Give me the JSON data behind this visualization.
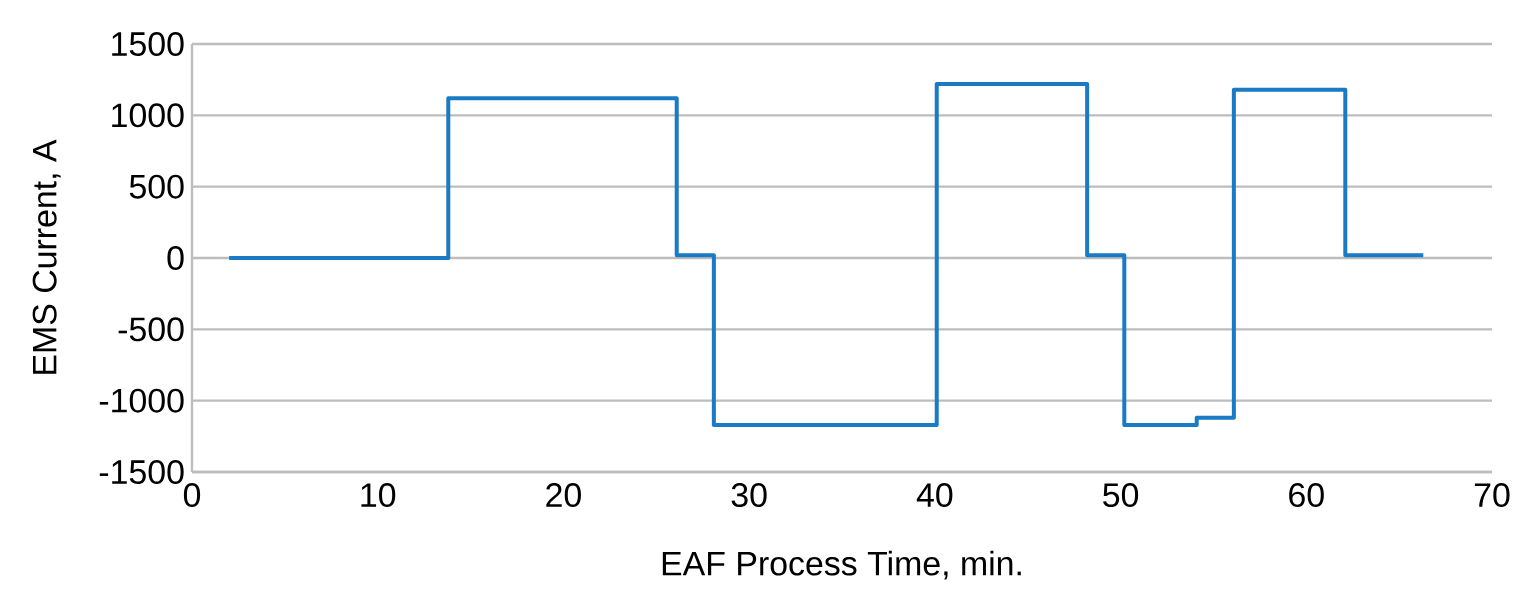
{
  "chart_data": {
    "type": "step",
    "xlabel": "EAF Process Time, min.",
    "ylabel": "EMS Current, A",
    "x": [
      2,
      13.8,
      26.1,
      28.1,
      40.1,
      48.2,
      50.2,
      54.1,
      56.1,
      62.1,
      66.3
    ],
    "values": [
      0,
      1120,
      20,
      -1170,
      1220,
      20,
      -1170,
      -1120,
      1180,
      20,
      20
    ],
    "color": "#1a7ac4",
    "xlim": [
      0,
      70
    ],
    "ylim": [
      -1500,
      1500
    ],
    "xticks": [
      0,
      10,
      20,
      30,
      40,
      50,
      60,
      70
    ],
    "yticks": [
      -1500,
      -1000,
      -500,
      0,
      500,
      1000,
      1500
    ],
    "grid": "y"
  }
}
